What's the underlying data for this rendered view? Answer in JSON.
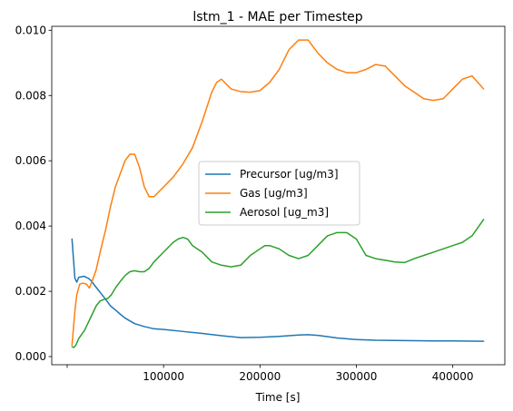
{
  "chart_data": {
    "type": "line",
    "title": "lstm_1 - MAE per Timestep",
    "xlabel": "Time [s]",
    "ylabel": "",
    "xlim": [
      -16000,
      454000
    ],
    "ylim": [
      -0.00025,
      0.01012
    ],
    "x_ticks": [
      {
        "value": 100000,
        "label": "100000"
      },
      {
        "value": 200000,
        "label": "200000"
      },
      {
        "value": 300000,
        "label": "300000"
      },
      {
        "value": 400000,
        "label": "400000"
      }
    ],
    "x_ticks_unlabeled": [
      0
    ],
    "y_ticks": [
      {
        "value": 0.0,
        "label": "0.000"
      },
      {
        "value": 0.002,
        "label": "0.002"
      },
      {
        "value": 0.004,
        "label": "0.004"
      },
      {
        "value": 0.006,
        "label": "0.006"
      },
      {
        "value": 0.008,
        "label": "0.008"
      },
      {
        "value": 0.01,
        "label": "0.010"
      }
    ],
    "grid": false,
    "legend_position": "center",
    "series": [
      {
        "name": "Precursor [ug/m3]",
        "color": "#1f77b4",
        "x": [
          5000,
          8000,
          10000,
          12000,
          14000,
          16000,
          18000,
          20000,
          22000,
          25000,
          28000,
          32000,
          36000,
          40000,
          45000,
          50000,
          55000,
          60000,
          70000,
          80000,
          90000,
          100000,
          120000,
          140000,
          160000,
          180000,
          200000,
          220000,
          240000,
          250000,
          260000,
          280000,
          300000,
          320000,
          350000,
          380000,
          400000,
          432000
        ],
        "y": [
          0.0036,
          0.0024,
          0.00228,
          0.00243,
          0.00244,
          0.00245,
          0.00246,
          0.00242,
          0.0024,
          0.00232,
          0.0022,
          0.00205,
          0.0019,
          0.00175,
          0.00155,
          0.00143,
          0.0013,
          0.00118,
          0.00101,
          0.00092,
          0.00085,
          0.00083,
          0.00077,
          0.00071,
          0.00064,
          0.00058,
          0.00059,
          0.00062,
          0.00066,
          0.00067,
          0.00065,
          0.00057,
          0.00052,
          0.0005,
          0.00049,
          0.00048,
          0.00048,
          0.00047
        ]
      },
      {
        "name": "Gas [ug/m3]",
        "color": "#ff7f0e",
        "x": [
          5000,
          8000,
          10000,
          13000,
          16000,
          20000,
          23000,
          26000,
          30000,
          35000,
          40000,
          45000,
          50000,
          55000,
          60000,
          65000,
          70000,
          75000,
          80000,
          85000,
          90000,
          100000,
          110000,
          120000,
          130000,
          140000,
          150000,
          155000,
          160000,
          170000,
          180000,
          190000,
          200000,
          210000,
          220000,
          230000,
          240000,
          250000,
          255000,
          260000,
          270000,
          280000,
          290000,
          300000,
          310000,
          320000,
          330000,
          340000,
          350000,
          360000,
          370000,
          380000,
          390000,
          400000,
          410000,
          420000,
          432000
        ],
        "y": [
          0.00035,
          0.0014,
          0.0019,
          0.00222,
          0.00225,
          0.00222,
          0.0021,
          0.00232,
          0.00265,
          0.0033,
          0.0039,
          0.0046,
          0.0052,
          0.0056,
          0.006,
          0.0062,
          0.0062,
          0.0058,
          0.0052,
          0.0049,
          0.0049,
          0.0052,
          0.0055,
          0.0059,
          0.0064,
          0.0072,
          0.0081,
          0.0084,
          0.0085,
          0.0082,
          0.00812,
          0.0081,
          0.00815,
          0.0084,
          0.0088,
          0.0094,
          0.0097,
          0.0097,
          0.0095,
          0.0093,
          0.009,
          0.0088,
          0.0087,
          0.0087,
          0.0088,
          0.00895,
          0.0089,
          0.0086,
          0.0083,
          0.0081,
          0.0079,
          0.00785,
          0.0079,
          0.0082,
          0.0085,
          0.0086,
          0.0082
        ]
      },
      {
        "name": "Aerosol [ug_m3]",
        "color": "#2ca02c",
        "x": [
          5000,
          7000,
          9000,
          12000,
          15000,
          18000,
          22000,
          26000,
          30000,
          34000,
          38000,
          42000,
          46000,
          50000,
          55000,
          60000,
          65000,
          70000,
          75000,
          80000,
          85000,
          90000,
          100000,
          110000,
          115000,
          120000,
          125000,
          130000,
          140000,
          150000,
          160000,
          170000,
          180000,
          190000,
          200000,
          205000,
          210000,
          220000,
          230000,
          240000,
          250000,
          260000,
          270000,
          280000,
          290000,
          300000,
          310000,
          320000,
          330000,
          340000,
          350000,
          360000,
          370000,
          380000,
          390000,
          400000,
          410000,
          420000,
          432000
        ],
        "y": [
          0.0003,
          0.00028,
          0.00035,
          0.00055,
          0.00068,
          0.0008,
          0.00105,
          0.0013,
          0.00155,
          0.0017,
          0.00175,
          0.00178,
          0.0019,
          0.0021,
          0.0023,
          0.00248,
          0.0026,
          0.00263,
          0.0026,
          0.0026,
          0.0027,
          0.0029,
          0.0032,
          0.0035,
          0.0036,
          0.00365,
          0.0036,
          0.0034,
          0.0032,
          0.0029,
          0.0028,
          0.00275,
          0.0028,
          0.0031,
          0.0033,
          0.0034,
          0.0034,
          0.0033,
          0.0031,
          0.003,
          0.0031,
          0.0034,
          0.0037,
          0.0038,
          0.0038,
          0.0036,
          0.0031,
          0.003,
          0.00295,
          0.0029,
          0.00288,
          0.003,
          0.0031,
          0.0032,
          0.0033,
          0.0034,
          0.0035,
          0.0037,
          0.0042
        ]
      }
    ]
  }
}
